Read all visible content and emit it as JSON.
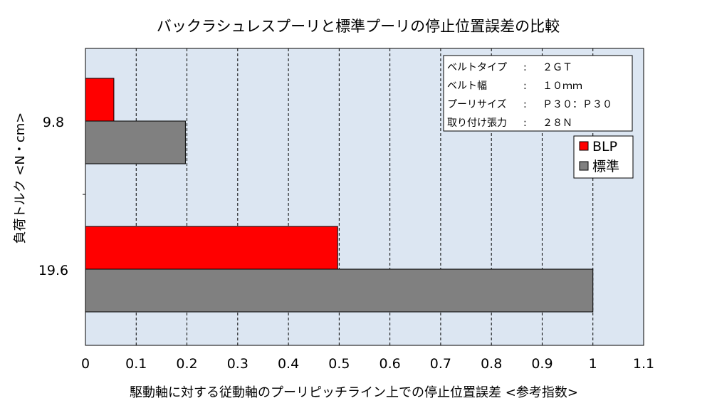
{
  "chart_data": {
    "type": "bar",
    "orientation": "horizontal",
    "title": "バックラシュレスプーリと標準プーリの停止位置誤差の比較",
    "xlabel": "駆動軸に対する従動軸のプーリピッチライン上での停止位置誤差 <参考指数>",
    "ylabel": "負荷トルク <N・cm>",
    "categories": [
      "9.8",
      "19.6"
    ],
    "series": [
      {
        "name": "BLP",
        "color": "#ff0000",
        "values": [
          0.056,
          0.497
        ]
      },
      {
        "name": "標準",
        "color": "#808080",
        "values": [
          0.197,
          1.0
        ]
      }
    ],
    "xlim": [
      0,
      1.1
    ],
    "xticks": [
      "0",
      "0.1",
      "0.2",
      "0.3",
      "0.4",
      "0.5",
      "0.6",
      "0.7",
      "0.8",
      "0.9",
      "1",
      "1.1"
    ],
    "grid": "vertical dashed",
    "plot_background": "#dce6f2",
    "legend_position": "right",
    "info_box": {
      "rows": [
        {
          "label": "ベルトタイプ",
          "sep": ":",
          "value": "２ＧＴ"
        },
        {
          "label": "ベルト幅",
          "sep": ":",
          "value": "１０ｍｍ"
        },
        {
          "label": "プーリサイズ",
          "sep": ":",
          "value": "Ｐ３０：Ｐ３０"
        },
        {
          "label": "取り付け張力",
          "sep": ":",
          "value": "２８Ｎ"
        }
      ]
    }
  }
}
